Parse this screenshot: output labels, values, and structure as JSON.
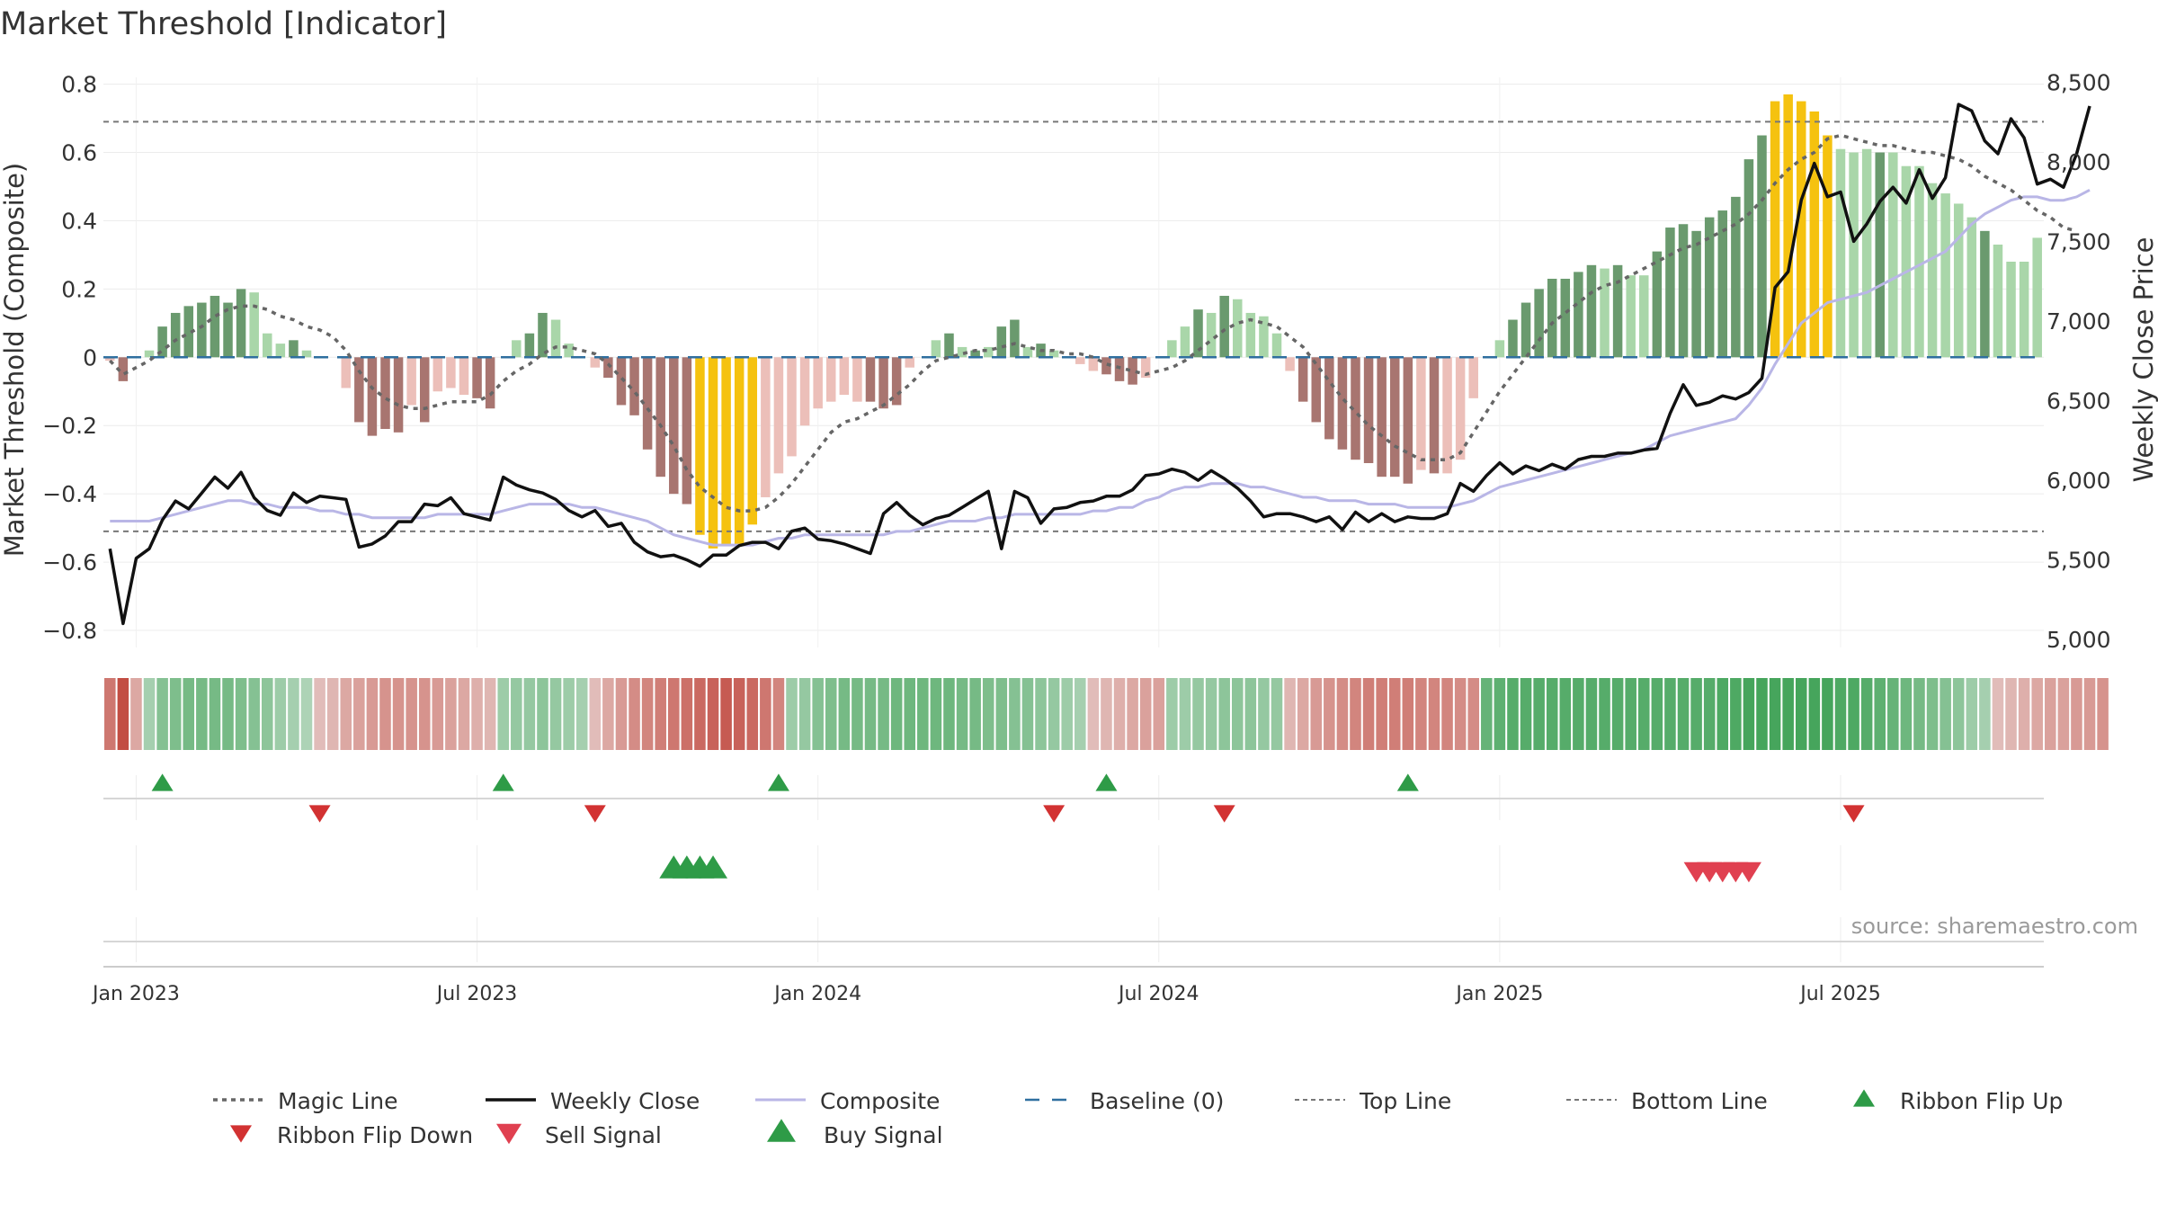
{
  "chart_data": {
    "type": "composite",
    "title": "Market Threshold [Indicator]",
    "ylabel_left": "Market Threshold (Composite)",
    "ylabel_right": "Weekly Close Price",
    "ylim_left": [
      -0.85,
      0.82
    ],
    "ylim_right": [
      4950,
      8530
    ],
    "yticks_left": [
      0.8,
      0.6,
      0.4,
      0.2,
      0,
      -0.2,
      -0.4,
      -0.6,
      -0.8
    ],
    "yticks_left_labels": [
      "0.8",
      "0.6",
      "0.4",
      "0.2",
      "0",
      "−0.2",
      "−0.4",
      "−0.6",
      "−0.8"
    ],
    "yticks_right": [
      8500,
      8000,
      7500,
      7000,
      6500,
      6000,
      5500,
      5000
    ],
    "yticks_right_labels": [
      "8,500",
      "8,000",
      "7,500",
      "7,000",
      "6,500",
      "6,000",
      "5,500",
      "5,000"
    ],
    "x_ticks": [
      {
        "week": 2,
        "label": "Jan 2023"
      },
      {
        "week": 28,
        "label": "Jul 2023"
      },
      {
        "week": 54,
        "label": "Jan 2024"
      },
      {
        "week": 80,
        "label": "Jul 2024"
      },
      {
        "week": 106,
        "label": "Jan 2025"
      },
      {
        "week": 132,
        "label": "Jul 2025"
      }
    ],
    "top_line": 0.69,
    "bottom_line": -0.51,
    "baseline": 0,
    "composite_bars": [
      -0.01,
      -0.07,
      0,
      0.02,
      0.09,
      0.13,
      0.15,
      0.16,
      0.18,
      0.16,
      0.2,
      0.19,
      0.07,
      0.04,
      0.05,
      0.02,
      0,
      0,
      -0.09,
      -0.19,
      -0.23,
      -0.21,
      -0.22,
      -0.14,
      -0.19,
      -0.1,
      -0.09,
      -0.11,
      -0.12,
      -0.15,
      0,
      0.05,
      0.07,
      0.13,
      0.11,
      0.04,
      0,
      -0.03,
      -0.06,
      -0.14,
      -0.17,
      -0.27,
      -0.35,
      -0.4,
      -0.43,
      -0.52,
      -0.56,
      -0.55,
      -0.55,
      -0.49,
      -0.41,
      -0.34,
      -0.29,
      -0.2,
      -0.15,
      -0.13,
      -0.11,
      -0.13,
      -0.13,
      -0.15,
      -0.14,
      -0.03,
      0,
      0.05,
      0.07,
      0.03,
      0.02,
      0.03,
      0.09,
      0.11,
      0.03,
      0.04,
      0.02,
      0,
      -0.02,
      -0.04,
      -0.05,
      -0.07,
      -0.08,
      -0.06,
      0,
      0.05,
      0.09,
      0.14,
      0.13,
      0.18,
      0.17,
      0.13,
      0.12,
      0.07,
      -0.04,
      -0.13,
      -0.19,
      -0.24,
      -0.27,
      -0.3,
      -0.31,
      -0.35,
      -0.35,
      -0.37,
      -0.33,
      -0.34,
      -0.34,
      -0.3,
      -0.12,
      0,
      0.05,
      0.11,
      0.16,
      0.2,
      0.23,
      0.23,
      0.25,
      0.27,
      0.26,
      0.27,
      0.24,
      0.24,
      0.31,
      0.38,
      0.39,
      0.37,
      0.41,
      0.43,
      0.47,
      0.58,
      0.65,
      0.75,
      0.77,
      0.75,
      0.72,
      0.65,
      0.61,
      0.6,
      0.61,
      0.6,
      0.6,
      0.56,
      0.56,
      0.51,
      0.48,
      0.45,
      0.41,
      0.37,
      0.33,
      0.28,
      0.28,
      0.35
    ],
    "bar_styles": [
      "pr",
      "dr",
      "pg",
      "pg",
      "dg",
      "dg",
      "dg",
      "dg",
      "dg",
      "dg",
      "dg",
      "pg",
      "pg",
      "pg",
      "dg",
      "pg",
      "pg",
      "pr",
      "pr",
      "dr",
      "dr",
      "dr",
      "dr",
      "pr",
      "dr",
      "pr",
      "pr",
      "pr",
      "dr",
      "dr",
      "pg",
      "pg",
      "dg",
      "dg",
      "pg",
      "pg",
      "pg",
      "pr",
      "dr",
      "dr",
      "dr",
      "dr",
      "dr",
      "dr",
      "dr",
      "y",
      "y",
      "y",
      "y",
      "y",
      "pr",
      "pr",
      "pr",
      "pr",
      "pr",
      "pr",
      "pr",
      "pr",
      "dr",
      "dr",
      "dr",
      "pr",
      "pg",
      "pg",
      "dg",
      "pg",
      "dg",
      "pg",
      "dg",
      "dg",
      "pg",
      "dg",
      "pg",
      "pg",
      "pr",
      "pr",
      "dr",
      "dr",
      "dr",
      "pr",
      "pg",
      "pg",
      "pg",
      "dg",
      "pg",
      "dg",
      "pg",
      "pg",
      "pg",
      "pg",
      "pr",
      "dr",
      "dr",
      "dr",
      "dr",
      "dr",
      "dr",
      "dr",
      "dr",
      "dr",
      "pr",
      "dr",
      "pr",
      "pr",
      "pr",
      "pg",
      "pg",
      "dg",
      "dg",
      "dg",
      "dg",
      "dg",
      "dg",
      "dg",
      "pg",
      "dg",
      "pg",
      "pg",
      "dg",
      "dg",
      "dg",
      "dg",
      "dg",
      "dg",
      "dg",
      "dg",
      "dg",
      "y",
      "y",
      "y",
      "y",
      "y",
      "pg",
      "pg",
      "pg",
      "dg",
      "pg",
      "pg",
      "pg",
      "pg",
      "pg",
      "pg",
      "pg",
      "dg",
      "pg",
      "pg",
      "pg",
      "pg",
      "pg",
      "dg"
    ],
    "weekly_close": [
      5570,
      5100,
      5510,
      5570,
      5750,
      5870,
      5820,
      5920,
      6020,
      5950,
      6050,
      5890,
      5810,
      5780,
      5920,
      5860,
      5900,
      5890,
      5880,
      5580,
      5600,
      5650,
      5740,
      5740,
      5850,
      5840,
      5890,
      5790,
      5770,
      5750,
      6020,
      5970,
      5940,
      5920,
      5880,
      5810,
      5770,
      5810,
      5710,
      5730,
      5610,
      5550,
      5520,
      5530,
      5500,
      5460,
      5530,
      5530,
      5590,
      5610,
      5610,
      5570,
      5680,
      5700,
      5630,
      5620,
      5600,
      5570,
      5540,
      5790,
      5860,
      5780,
      5720,
      5760,
      5780,
      5830,
      5880,
      5930,
      5570,
      5930,
      5890,
      5730,
      5820,
      5830,
      5860,
      5870,
      5900,
      5900,
      5940,
      6030,
      6040,
      6070,
      6050,
      6000,
      6060,
      6010,
      5950,
      5870,
      5770,
      5790,
      5790,
      5770,
      5740,
      5770,
      5690,
      5800,
      5740,
      5790,
      5740,
      5770,
      5760,
      5760,
      5790,
      5980,
      5930,
      6030,
      6110,
      6040,
      6090,
      6060,
      6100,
      6070,
      6130,
      6150,
      6150,
      6170,
      6170,
      6190,
      6200,
      6420,
      6600,
      6470,
      6490,
      6530,
      6510,
      6550,
      6640,
      7210,
      7310,
      7760,
      7990,
      7780,
      7810,
      7500,
      7610,
      7750,
      7840,
      7740,
      7950,
      7770,
      7900,
      8360,
      8320,
      8130,
      8050,
      8270,
      8150,
      7860,
      7890,
      7840,
      8050,
      8350
    ],
    "magic_line": [
      -0.01,
      -0.05,
      -0.03,
      -0.01,
      0.02,
      0.05,
      0.07,
      0.09,
      0.12,
      0.14,
      0.15,
      0.15,
      0.14,
      0.12,
      0.11,
      0.09,
      0.08,
      0.06,
      0.02,
      -0.04,
      -0.09,
      -0.12,
      -0.14,
      -0.15,
      -0.15,
      -0.14,
      -0.13,
      -0.13,
      -0.13,
      -0.11,
      -0.07,
      -0.04,
      -0.02,
      0.01,
      0.03,
      0.03,
      0.02,
      0.01,
      -0.02,
      -0.06,
      -0.1,
      -0.15,
      -0.2,
      -0.26,
      -0.33,
      -0.38,
      -0.41,
      -0.44,
      -0.45,
      -0.45,
      -0.44,
      -0.41,
      -0.37,
      -0.32,
      -0.27,
      -0.22,
      -0.19,
      -0.18,
      -0.16,
      -0.14,
      -0.11,
      -0.08,
      -0.04,
      -0.01,
      0,
      0.01,
      0.02,
      0.02,
      0.03,
      0.04,
      0.03,
      0.02,
      0.02,
      0.01,
      0.01,
      0,
      -0.02,
      -0.03,
      -0.04,
      -0.05,
      -0.04,
      -0.03,
      -0.01,
      0.02,
      0.05,
      0.08,
      0.1,
      0.11,
      0.1,
      0.09,
      0.06,
      0.03,
      -0.02,
      -0.07,
      -0.12,
      -0.16,
      -0.2,
      -0.23,
      -0.26,
      -0.28,
      -0.3,
      -0.3,
      -0.3,
      -0.28,
      -0.22,
      -0.16,
      -0.1,
      -0.05,
      0,
      0.05,
      0.1,
      0.13,
      0.16,
      0.19,
      0.21,
      0.22,
      0.24,
      0.26,
      0.28,
      0.3,
      0.32,
      0.33,
      0.35,
      0.37,
      0.39,
      0.42,
      0.46,
      0.51,
      0.55,
      0.58,
      0.6,
      0.64,
      0.65,
      0.64,
      0.63,
      0.62,
      0.62,
      0.61,
      0.6,
      0.6,
      0.59,
      0.58,
      0.56,
      0.53,
      0.51,
      0.49,
      0.46,
      0.43,
      0.41,
      0.38,
      0.37
    ],
    "composite_line_ylim_note": "composite line plotted on left axis",
    "composite_line": [
      -0.48,
      -0.48,
      -0.48,
      -0.48,
      -0.47,
      -0.46,
      -0.45,
      -0.44,
      -0.43,
      -0.42,
      -0.42,
      -0.43,
      -0.43,
      -0.44,
      -0.44,
      -0.44,
      -0.45,
      -0.45,
      -0.46,
      -0.46,
      -0.47,
      -0.47,
      -0.47,
      -0.47,
      -0.47,
      -0.46,
      -0.46,
      -0.46,
      -0.46,
      -0.46,
      -0.45,
      -0.44,
      -0.43,
      -0.43,
      -0.43,
      -0.43,
      -0.44,
      -0.44,
      -0.45,
      -0.46,
      -0.47,
      -0.48,
      -0.5,
      -0.52,
      -0.53,
      -0.54,
      -0.55,
      -0.55,
      -0.55,
      -0.55,
      -0.54,
      -0.53,
      -0.53,
      -0.52,
      -0.52,
      -0.52,
      -0.52,
      -0.52,
      -0.52,
      -0.52,
      -0.51,
      -0.51,
      -0.5,
      -0.49,
      -0.48,
      -0.48,
      -0.48,
      -0.47,
      -0.47,
      -0.46,
      -0.46,
      -0.46,
      -0.46,
      -0.46,
      -0.46,
      -0.45,
      -0.45,
      -0.44,
      -0.44,
      -0.42,
      -0.41,
      -0.39,
      -0.38,
      -0.38,
      -0.37,
      -0.37,
      -0.37,
      -0.38,
      -0.38,
      -0.39,
      -0.4,
      -0.41,
      -0.41,
      -0.42,
      -0.42,
      -0.42,
      -0.43,
      -0.43,
      -0.43,
      -0.44,
      -0.44,
      -0.44,
      -0.44,
      -0.43,
      -0.42,
      -0.4,
      -0.38,
      -0.37,
      -0.36,
      -0.35,
      -0.34,
      -0.33,
      -0.32,
      -0.31,
      -0.3,
      -0.29,
      -0.28,
      -0.27,
      -0.25,
      -0.23,
      -0.22,
      -0.21,
      -0.2,
      -0.19,
      -0.18,
      -0.14,
      -0.09,
      -0.02,
      0.04,
      0.1,
      0.13,
      0.16,
      0.17,
      0.18,
      0.19,
      0.21,
      0.23,
      0.25,
      0.27,
      0.29,
      0.31,
      0.35,
      0.39,
      0.42,
      0.44,
      0.46,
      0.47,
      0.47,
      0.46,
      0.46,
      0.47,
      0.49
    ],
    "ribbon": [
      -0.65,
      -0.95,
      -0.3,
      0.25,
      0.45,
      0.5,
      0.55,
      0.55,
      0.55,
      0.55,
      0.5,
      0.45,
      0.4,
      0.3,
      0.25,
      0.2,
      -0.15,
      -0.2,
      -0.3,
      -0.35,
      -0.4,
      -0.45,
      -0.45,
      -0.45,
      -0.45,
      -0.4,
      -0.35,
      -0.3,
      -0.25,
      -0.2,
      0.3,
      0.35,
      0.35,
      0.4,
      0.35,
      0.3,
      0.25,
      -0.15,
      -0.3,
      -0.4,
      -0.5,
      -0.55,
      -0.6,
      -0.65,
      -0.7,
      -0.75,
      -0.8,
      -0.85,
      -0.8,
      -0.75,
      -0.65,
      -0.55,
      0.3,
      0.35,
      0.45,
      0.5,
      0.55,
      0.55,
      0.55,
      0.55,
      0.6,
      0.6,
      0.6,
      0.6,
      0.6,
      0.55,
      0.55,
      0.5,
      0.5,
      0.45,
      0.45,
      0.4,
      0.35,
      0.3,
      0.25,
      -0.15,
      -0.2,
      -0.25,
      -0.3,
      -0.35,
      -0.35,
      0.3,
      0.3,
      0.35,
      0.35,
      0.4,
      0.4,
      0.4,
      0.35,
      0.35,
      -0.2,
      -0.3,
      -0.4,
      -0.45,
      -0.5,
      -0.55,
      -0.6,
      -0.6,
      -0.6,
      -0.6,
      -0.55,
      -0.55,
      -0.55,
      -0.5,
      -0.5,
      0.65,
      0.7,
      0.75,
      0.75,
      0.75,
      0.75,
      0.75,
      0.75,
      0.75,
      0.75,
      0.75,
      0.75,
      0.75,
      0.75,
      0.75,
      0.75,
      0.75,
      0.75,
      0.8,
      0.8,
      0.85,
      0.85,
      0.85,
      0.85,
      0.85,
      0.85,
      0.85,
      0.8,
      0.8,
      0.75,
      0.7,
      0.65,
      0.6,
      0.55,
      0.5,
      0.45,
      0.4,
      0.3,
      0.25,
      -0.15,
      -0.2,
      -0.25,
      -0.3,
      -0.35,
      -0.35,
      -0.4,
      -0.4,
      -0.45
    ],
    "ribbon_flip_up": [
      4,
      30,
      51,
      76,
      99
    ],
    "ribbon_flip_down": [
      16,
      37,
      72,
      85,
      133
    ],
    "buy_signal": [
      43,
      44,
      45,
      46
    ],
    "sell_signal": [
      121,
      122,
      123,
      124,
      125
    ],
    "legend": [
      {
        "key": "magic",
        "label": "Magic Line"
      },
      {
        "key": "close",
        "label": "Weekly Close"
      },
      {
        "key": "composite",
        "label": "Composite"
      },
      {
        "key": "baseline",
        "label": "Baseline (0)"
      },
      {
        "key": "top",
        "label": "Top Line"
      },
      {
        "key": "bottom",
        "label": "Bottom Line"
      },
      {
        "key": "flipup",
        "label": "Ribbon Flip Up"
      },
      {
        "key": "flipdown",
        "label": "Ribbon Flip Down"
      },
      {
        "key": "sell",
        "label": "Sell Signal"
      },
      {
        "key": "buy",
        "label": "Buy Signal"
      }
    ],
    "source": "source: sharemaestro.com"
  },
  "colors": {
    "dark_green": "#6a9a6e",
    "pale_green": "#a9d6a9",
    "dark_red": "#a87570",
    "pale_red": "#ecbfb9",
    "yellow": "#f5c20f",
    "close_line": "#111111",
    "composite_line": "#b9b6e6",
    "magic_line": "#666666",
    "baseline": "#2f6f9f",
    "threshold": "#777777",
    "up_marker": "#2e9b47",
    "down_marker": "#d23232",
    "sell_marker": "#e04050",
    "buy_marker": "#2e9b47"
  }
}
